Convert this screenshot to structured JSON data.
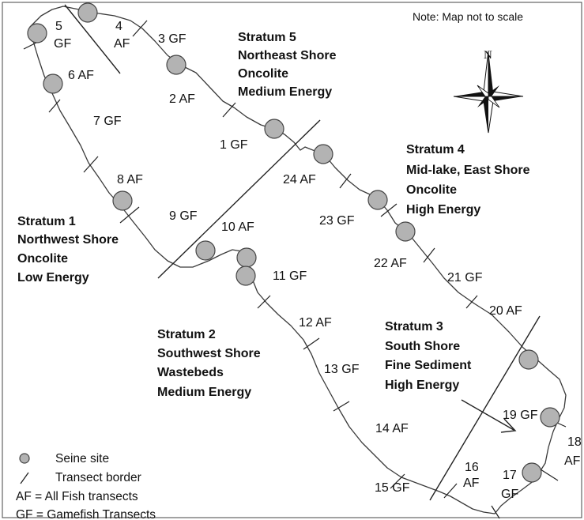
{
  "note": "Note: Map not to scale",
  "compass": {
    "label": "N",
    "icon": "compass-rose-icon"
  },
  "strata": [
    {
      "id": "stratum-1",
      "lines": [
        "Stratum 1",
        "Northwest Shore",
        "Oncolite",
        "Low Energy"
      ]
    },
    {
      "id": "stratum-2",
      "lines": [
        "Stratum 2",
        "Southwest Shore",
        "Wastebeds",
        "Medium Energy"
      ]
    },
    {
      "id": "stratum-3",
      "lines": [
        "Stratum 3",
        "South Shore",
        "Fine Sediment",
        "High Energy"
      ]
    },
    {
      "id": "stratum-4",
      "lines": [
        "Stratum 4",
        "Mid-lake, East Shore",
        "Oncolite",
        "High Energy"
      ]
    },
    {
      "id": "stratum-5",
      "lines": [
        "Stratum 5",
        "Northeast Shore",
        "Oncolite",
        "Medium Energy"
      ]
    }
  ],
  "transects": [
    {
      "id": "t1",
      "label": "1 GF"
    },
    {
      "id": "t2",
      "label": "2 AF"
    },
    {
      "id": "t3",
      "label": "3 GF"
    },
    {
      "id": "t4",
      "lines": [
        "4",
        "AF"
      ]
    },
    {
      "id": "t5",
      "lines": [
        "5",
        "GF"
      ]
    },
    {
      "id": "t6",
      "label": "6 AF"
    },
    {
      "id": "t7",
      "label": "7 GF"
    },
    {
      "id": "t8",
      "label": "8 AF"
    },
    {
      "id": "t9",
      "label": "9 GF"
    },
    {
      "id": "t10",
      "label": "10 AF"
    },
    {
      "id": "t11",
      "label": "11 GF"
    },
    {
      "id": "t12",
      "label": "12 AF"
    },
    {
      "id": "t13",
      "label": "13 GF"
    },
    {
      "id": "t14",
      "label": "14 AF"
    },
    {
      "id": "t15",
      "label": "15 GF"
    },
    {
      "id": "t16",
      "lines": [
        "16",
        "AF"
      ]
    },
    {
      "id": "t17",
      "lines": [
        "17",
        "GF"
      ]
    },
    {
      "id": "t18",
      "lines": [
        "18",
        "AF"
      ]
    },
    {
      "id": "t19",
      "label": "19 GF"
    },
    {
      "id": "t20",
      "label": "20 AF"
    },
    {
      "id": "t21",
      "label": "21 GF"
    },
    {
      "id": "t22",
      "label": "22 AF"
    },
    {
      "id": "t23",
      "label": "23 GF"
    },
    {
      "id": "t24",
      "label": "24 AF"
    }
  ],
  "legend": {
    "seine_site": "Seine site",
    "transect_border": "Transect border",
    "af_def": "AF = All Fish transects",
    "gf_def": "GF = Gamefish Transects"
  },
  "colors": {
    "seine_site_fill": "#b3b3b3",
    "line": "#222222",
    "background": "#ffffff"
  }
}
